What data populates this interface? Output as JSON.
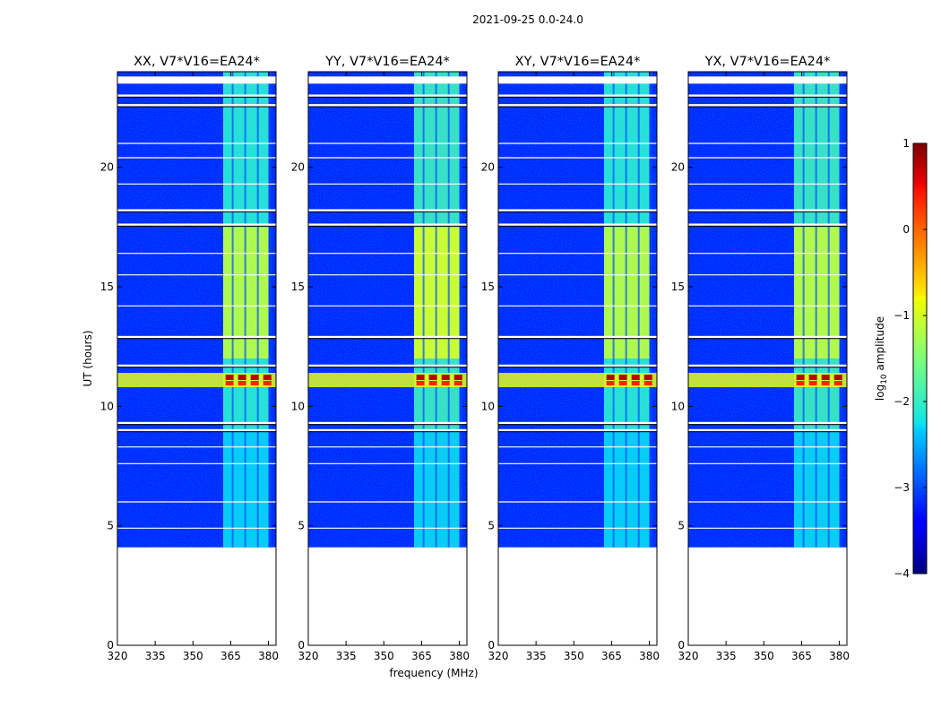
{
  "chart_data": {
    "type": "heatmap",
    "suptitle": "2021-09-25 0.0-24.0",
    "xlabel": "frequency (MHz)",
    "ylabel": "UT (hours)",
    "xlim": [
      320,
      383
    ],
    "ylim": [
      0,
      24
    ],
    "xticks": [
      "320",
      "335",
      "350",
      "365",
      "380"
    ],
    "yticks": [
      "0",
      "5",
      "10",
      "15",
      "20"
    ],
    "panels": [
      {
        "title": "XX, V7*V16=EA24*"
      },
      {
        "title": "YY, V7*V16=EA24*"
      },
      {
        "title": "XY, V7*V16=EA24*"
      },
      {
        "title": "YX, V7*V16=EA24*"
      }
    ],
    "data_time_range_hours": [
      4.1,
      24.0
    ],
    "rfi_band_mhz": [
      362,
      380
    ],
    "rfi_channels_mhz": [
      364,
      369,
      374,
      379
    ],
    "flagged_rows_hours": [
      23.0,
      22.6,
      18.2,
      17.6,
      12.9,
      11.7,
      9.3,
      9.0
    ],
    "strong_rfi_hours": [
      10.8,
      11.4
    ],
    "colorbar": {
      "label": "log10 amplitude",
      "label_base": "log",
      "label_sub": "10",
      "label_rest": " amplitude",
      "min": -4,
      "max": 1,
      "ticks": [
        "1",
        "0",
        "−1",
        "−2",
        "−3",
        "−4"
      ],
      "colormap": "jet"
    }
  }
}
